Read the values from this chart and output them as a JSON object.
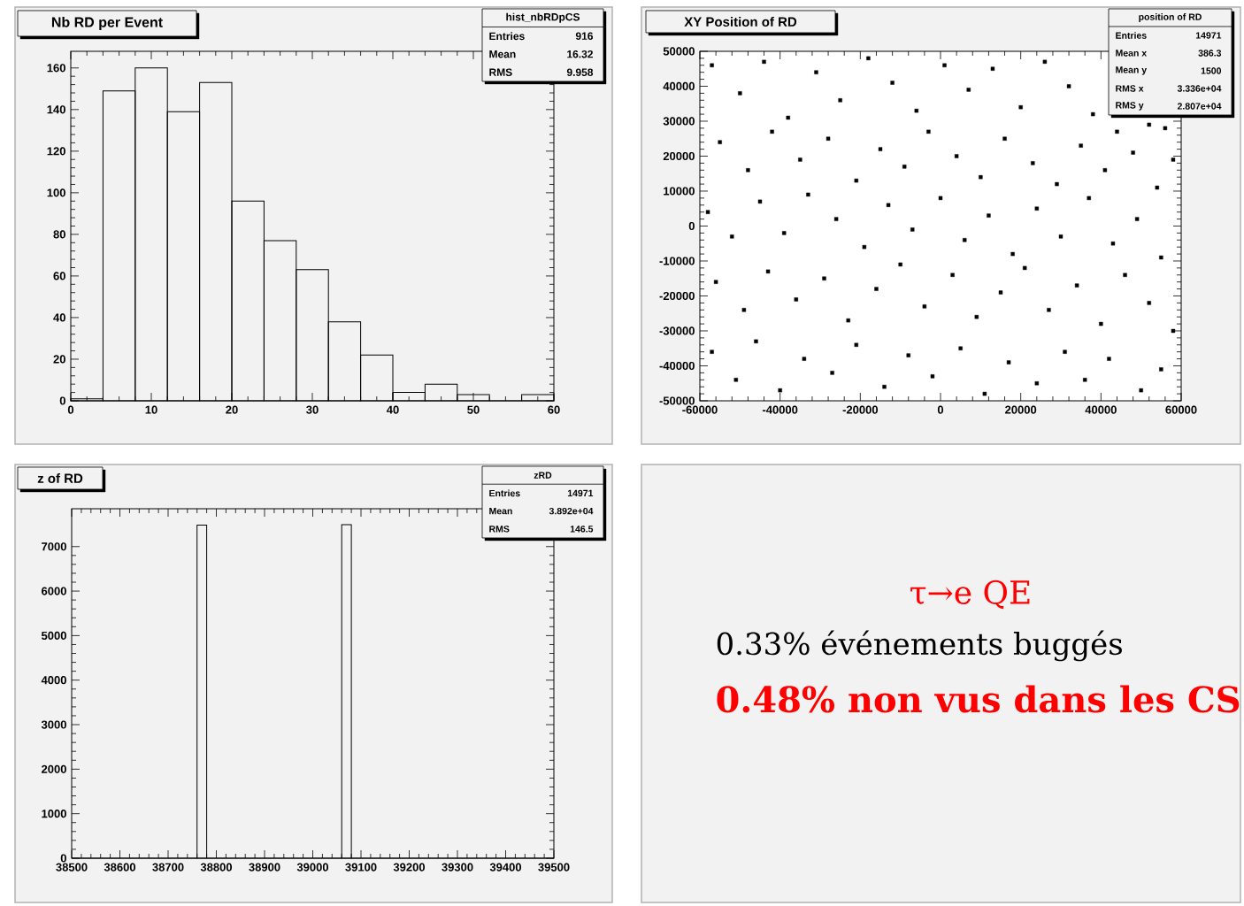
{
  "chart_data": [
    {
      "type": "histogram",
      "title": "Nb RD per Event",
      "color": "#000000",
      "bins": [
        0,
        4,
        8,
        12,
        16,
        20,
        24,
        28,
        32,
        36,
        40,
        44,
        48,
        52,
        56,
        60
      ],
      "values": [
        1,
        149,
        160,
        139,
        153,
        96,
        77,
        63,
        38,
        22,
        4,
        8,
        3,
        0,
        3
      ],
      "xlim": [
        0,
        60
      ],
      "ylim": [
        0,
        168
      ],
      "xticks": [
        0,
        10,
        20,
        30,
        40,
        50,
        60
      ],
      "yticks": [
        0,
        20,
        40,
        60,
        80,
        100,
        120,
        140,
        160
      ],
      "annotations": [
        "hist_nbRDpCS",
        "Entries",
        "916",
        "Mean",
        "16.32",
        "RMS",
        "9.958"
      ]
    },
    {
      "type": "scatter",
      "title": "XY Position of RD",
      "color": "#000000",
      "marker": "square",
      "x": [
        -57000,
        -50000,
        -44000,
        -38000,
        -31000,
        -25000,
        -18000,
        -12000,
        -6000,
        1000,
        7000,
        13000,
        20000,
        26000,
        32000,
        38000,
        44000,
        52000,
        56000,
        -55000,
        -48000,
        -42000,
        -35000,
        -28000,
        -21000,
        -15000,
        -9000,
        -3000,
        4000,
        10000,
        16000,
        23000,
        29000,
        35000,
        41000,
        48000,
        54000,
        58000,
        -58000,
        -52000,
        -45000,
        -39000,
        -33000,
        -26000,
        -19000,
        -13000,
        -7000,
        0,
        6000,
        12000,
        18000,
        24000,
        30000,
        37000,
        43000,
        49000,
        55000,
        -56000,
        -49000,
        -43000,
        -36000,
        -29000,
        -23000,
        -16000,
        -10000,
        -4000,
        3000,
        9000,
        15000,
        21000,
        27000,
        34000,
        40000,
        46000,
        52000,
        58000,
        -57000,
        -51000,
        -46000,
        -40000,
        -34000,
        -27000,
        -21000,
        -14000,
        -8000,
        -2000,
        5000,
        11000,
        17000,
        24000,
        31000,
        36000,
        42000,
        50000,
        55000
      ],
      "values": [
        46000,
        38000,
        47000,
        31000,
        44000,
        36000,
        48000,
        41000,
        33000,
        46000,
        39000,
        45000,
        34000,
        47000,
        40000,
        32000,
        27000,
        29000,
        28000,
        24000,
        16000,
        27000,
        19000,
        25000,
        13000,
        22000,
        17000,
        27000,
        20000,
        14000,
        25000,
        18000,
        12000,
        23000,
        16000,
        21000,
        11000,
        19000,
        4000,
        -3000,
        7000,
        -2000,
        9000,
        2000,
        -6000,
        6000,
        -1000,
        8000,
        -4000,
        3000,
        -8000,
        5000,
        -3000,
        8000,
        -5000,
        2000,
        -9000,
        -16000,
        -24000,
        -13000,
        -21000,
        -15000,
        -27000,
        -18000,
        -11000,
        -23000,
        -14000,
        -26000,
        -19000,
        -12000,
        -24000,
        -17000,
        -28000,
        -14000,
        -22000,
        -30000,
        -36000,
        -44000,
        -33000,
        -47000,
        -38000,
        -42000,
        -34000,
        -46000,
        -37000,
        -43000,
        -35000,
        -48000,
        -39000,
        -45000,
        -36000,
        -44000,
        -38000,
        -47000,
        -41000
      ],
      "xlim": [
        -60000,
        60000
      ],
      "ylim": [
        -50000,
        50000
      ],
      "xticks": [
        -60000,
        -40000,
        -20000,
        0,
        20000,
        40000,
        60000
      ],
      "yticks": [
        -50000,
        -40000,
        -30000,
        -20000,
        -10000,
        0,
        10000,
        20000,
        30000,
        40000,
        50000
      ],
      "annotations": [
        "position of RD",
        "Entries",
        "14971",
        "Mean x",
        "386.3",
        "Mean y",
        "1500",
        "RMS x",
        "3.336e+04",
        "RMS y",
        "2.807e+04"
      ]
    },
    {
      "type": "histogram",
      "title": "z of RD",
      "color": "#000000",
      "bins": [
        38500,
        38520,
        38540,
        38560,
        38580,
        38600,
        38620,
        38640,
        38660,
        38680,
        38700,
        38720,
        38740,
        38760,
        38780,
        38800,
        38820,
        38840,
        38860,
        38880,
        38900,
        38920,
        38940,
        38960,
        38980,
        39000,
        39020,
        39040,
        39060,
        39080,
        39100,
        39120,
        39140,
        39160,
        39180,
        39200,
        39220,
        39240,
        39260,
        39280,
        39300,
        39320,
        39340,
        39360,
        39380,
        39400,
        39420,
        39440,
        39460,
        39480,
        39500
      ],
      "values": [
        0,
        0,
        0,
        0,
        0,
        0,
        0,
        0,
        0,
        0,
        0,
        0,
        0,
        7480,
        0,
        0,
        0,
        0,
        0,
        0,
        0,
        0,
        0,
        0,
        0,
        0,
        0,
        0,
        7490,
        0,
        0,
        0,
        0,
        0,
        0,
        0,
        0,
        0,
        0,
        0,
        0,
        0,
        0,
        0,
        0,
        0,
        0,
        0,
        0,
        0
      ],
      "xlim": [
        38500,
        39500
      ],
      "ylim": [
        0,
        7850
      ],
      "xticks": [
        38500,
        38600,
        38700,
        38800,
        38900,
        39000,
        39100,
        39200,
        39300,
        39400,
        39500
      ],
      "yticks": [
        0,
        1000,
        2000,
        3000,
        4000,
        5000,
        6000,
        7000
      ],
      "annotations": [
        "zRD",
        "Entries",
        "14971",
        "Mean",
        "3.892e+04",
        "RMS",
        "146.5"
      ]
    },
    {
      "type": "other",
      "title": "τ→e QE",
      "annotations": [
        "0.33% événements buggés",
        "0.48% non vus dans les CS"
      ]
    }
  ]
}
